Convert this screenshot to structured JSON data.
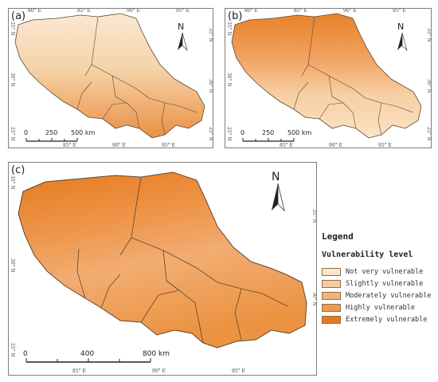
{
  "panels": {
    "a": {
      "label": "(a)",
      "scale_labels": [
        "0",
        "250",
        "500 km"
      ],
      "north": "N",
      "top_ticks": [
        "80° E",
        "85° E",
        "90° E",
        "95° E"
      ],
      "bottom_ticks": [
        "85° E",
        "90° E",
        "95° E"
      ],
      "left_ticks": [
        "35° N",
        "30° N",
        "25° N"
      ],
      "right_ticks": [
        "35° N",
        "30° N",
        "25° N"
      ]
    },
    "b": {
      "label": "(b)",
      "scale_labels": [
        "0",
        "250",
        "500 km"
      ],
      "north": "N",
      "top_ticks": [
        "80° E",
        "85° E",
        "90° E",
        "95° E"
      ],
      "bottom_ticks": [
        "85° E",
        "90° E",
        "95° E"
      ],
      "left_ticks": [
        "35° N",
        "30° N",
        "25° N"
      ],
      "right_ticks": [
        "35° N",
        "30° N",
        "25° N"
      ]
    },
    "c": {
      "label": "(c)",
      "scale_labels": [
        "0",
        "400",
        "800 km"
      ],
      "north": "N",
      "bottom_ticks": [
        "85° E",
        "90° E",
        "95° E"
      ],
      "left_ticks": [
        "35° N",
        "30° N",
        "25° N"
      ],
      "right_ticks": [
        "35° N",
        "30° N"
      ]
    }
  },
  "legend": {
    "title": "Legend",
    "subtitle": "Vulnerability level",
    "items": [
      {
        "label": "Not very vulnerable",
        "color": "#fbe6cc"
      },
      {
        "label": "Slightly vulnerable",
        "color": "#f7cda0"
      },
      {
        "label": "Moderately vulnerable",
        "color": "#f3b278"
      },
      {
        "label": "Highly vulnerable",
        "color": "#ef9a4c"
      },
      {
        "label": "Extremely vulnerable",
        "color": "#e6781c"
      }
    ]
  },
  "colors": {
    "border": "#5b4630",
    "frame": "#7f7f7f"
  }
}
